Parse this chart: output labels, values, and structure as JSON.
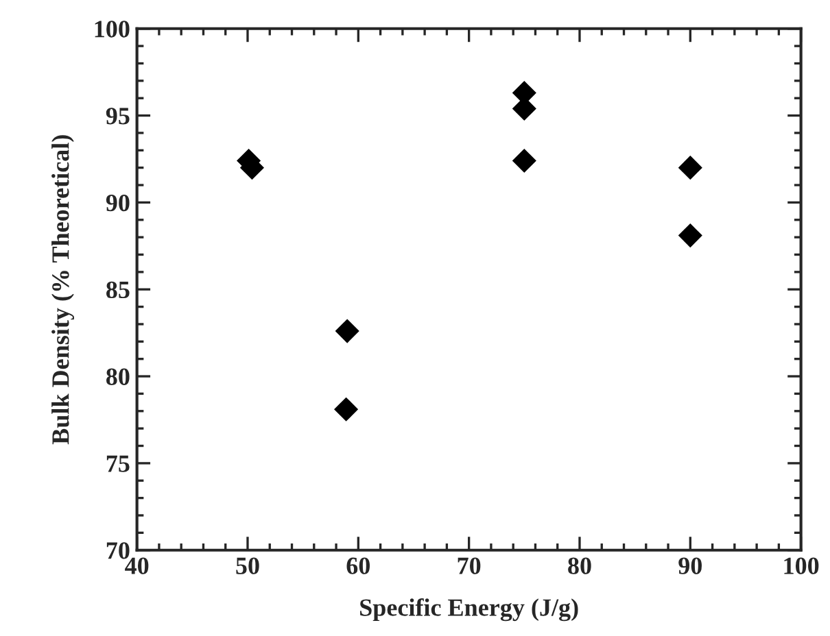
{
  "chart_data": {
    "type": "scatter",
    "xlabel": "Specific Energy (J/g)",
    "ylabel": "Bulk Density (% Theoretical)",
    "xlim": [
      40,
      100
    ],
    "xticks": [
      40,
      50,
      60,
      70,
      80,
      90,
      100
    ],
    "ylim": [
      70,
      100
    ],
    "yticks": [
      70,
      75,
      80,
      85,
      90,
      95,
      100
    ],
    "marker": "diamond",
    "grid": false,
    "legend": false,
    "series": [
      {
        "color": "#000000",
        "x": [
          50.1,
          50.4,
          59.0,
          58.9,
          75.0,
          75.0,
          75.0,
          90.0,
          90.0
        ],
        "values": [
          92.4,
          92.0,
          82.6,
          78.1,
          96.3,
          95.4,
          92.4,
          92.0,
          88.1
        ]
      }
    ]
  }
}
